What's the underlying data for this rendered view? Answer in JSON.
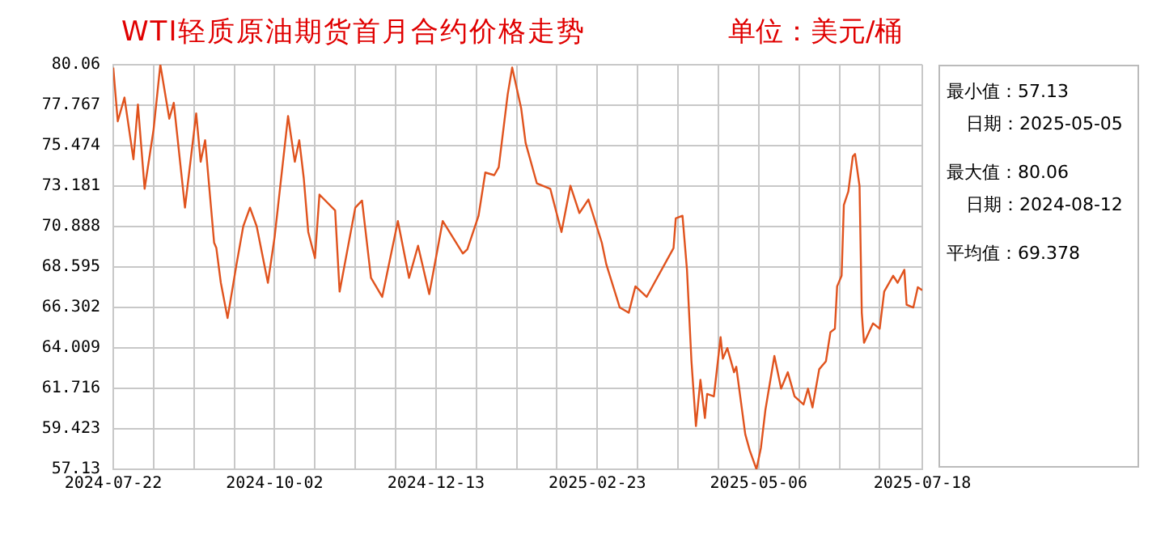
{
  "chart_data": {
    "type": "line",
    "title": "WTI轻质原油期货首月合约价格走势",
    "ylabel": "单位：美元/桶",
    "annotations": [
      "最小值：57.13",
      "日期：2025-05-05",
      "最大值：80.06",
      "日期：2024-08-12",
      "平均值：69.378"
    ],
    "x": [
      "2024-07-22",
      "2024-07-24",
      "2024-07-27",
      "2024-07-31",
      "2024-08-02",
      "2024-08-05",
      "2024-08-09",
      "2024-08-12",
      "2024-08-16",
      "2024-08-18",
      "2024-08-23",
      "2024-08-28",
      "2024-08-30",
      "2024-09-01",
      "2024-09-05",
      "2024-09-06",
      "2024-09-08",
      "2024-09-11",
      "2024-09-15",
      "2024-09-18",
      "2024-09-21",
      "2024-09-24",
      "2024-09-29",
      "2024-10-02",
      "2024-10-08",
      "2024-10-11",
      "2024-10-13",
      "2024-10-15",
      "2024-10-17",
      "2024-10-20",
      "2024-10-22",
      "2024-10-29",
      "2024-10-31",
      "2024-11-07",
      "2024-11-10",
      "2024-11-14",
      "2024-11-19",
      "2024-11-26",
      "2024-12-01",
      "2024-12-05",
      "2024-12-10",
      "2024-12-16",
      "2024-12-25",
      "2024-12-27",
      "2025-01-01",
      "2025-01-04",
      "2025-01-08",
      "2025-01-10",
      "2025-01-14",
      "2025-01-16",
      "2025-01-20",
      "2025-01-22",
      "2025-01-27",
      "2025-02-02",
      "2025-02-07",
      "2025-02-11",
      "2025-02-15",
      "2025-02-19",
      "2025-02-25",
      "2025-02-27",
      "2025-03-05",
      "2025-03-09",
      "2025-03-12",
      "2025-03-17",
      "2025-03-29",
      "2025-03-30",
      "2025-04-02",
      "2025-04-04",
      "2025-04-06",
      "2025-04-08",
      "2025-04-10",
      "2025-04-12",
      "2025-04-13",
      "2025-04-16",
      "2025-04-19",
      "2025-04-20",
      "2025-04-22",
      "2025-04-25",
      "2025-04-26",
      "2025-04-30",
      "2025-05-02",
      "2025-05-05",
      "2025-05-07",
      "2025-05-09",
      "2025-05-13",
      "2025-05-16",
      "2025-05-19",
      "2025-05-22",
      "2025-05-26",
      "2025-05-28",
      "2025-05-30",
      "2025-06-02",
      "2025-06-05",
      "2025-06-07",
      "2025-06-09",
      "2025-06-10",
      "2025-06-12",
      "2025-06-13",
      "2025-06-15",
      "2025-06-17",
      "2025-06-18",
      "2025-06-20",
      "2025-06-21",
      "2025-06-22",
      "2025-06-26",
      "2025-06-29",
      "2025-07-01",
      "2025-07-05",
      "2025-07-07",
      "2025-07-10",
      "2025-07-11",
      "2025-07-14",
      "2025-07-16",
      "2025-07-18"
    ],
    "series": [
      {
        "color": "#e0531e",
        "values": [
          79.9,
          76.85,
          78.2,
          74.7,
          77.8,
          73.03,
          76.4,
          80.06,
          77.0,
          77.9,
          71.96,
          77.3,
          74.56,
          75.78,
          69.97,
          69.67,
          67.7,
          65.7,
          68.75,
          70.9,
          71.96,
          70.9,
          67.7,
          70.3,
          77.15,
          74.56,
          75.78,
          73.64,
          70.58,
          69.1,
          72.7,
          71.8,
          67.2,
          71.96,
          72.36,
          67.98,
          66.9,
          71.2,
          67.98,
          69.8,
          67.06,
          71.2,
          69.36,
          69.6,
          71.5,
          73.95,
          73.8,
          74.25,
          78.38,
          79.9,
          77.6,
          75.63,
          73.34,
          73.03,
          70.58,
          73.2,
          71.65,
          72.42,
          69.97,
          68.75,
          66.3,
          66.0,
          67.5,
          66.9,
          69.67,
          71.35,
          71.5,
          68.44,
          63.25,
          59.58,
          62.2,
          60.04,
          61.4,
          61.26,
          64.62,
          63.4,
          64.0,
          62.63,
          62.94,
          59.12,
          58.2,
          57.13,
          58.35,
          60.5,
          63.55,
          61.7,
          62.63,
          61.26,
          60.8,
          61.7,
          60.64,
          62.8,
          63.25,
          64.9,
          65.1,
          67.5,
          68.1,
          72.11,
          72.88,
          74.86,
          75.0,
          73.18,
          66.0,
          64.3,
          65.4,
          65.1,
          67.2,
          68.1,
          67.7,
          68.44,
          66.46,
          66.3,
          67.45,
          67.28
        ]
      }
    ],
    "xlim": [
      "2024-07-22",
      "2025-07-18"
    ],
    "xticks": [
      "2024-07-22",
      {
        "value": "2024-08-09",
        "label": null
      },
      {
        "value": "2024-08-27",
        "label": null
      },
      {
        "value": "2024-09-14",
        "label": null
      },
      "2024-10-02",
      {
        "value": "2024-10-20",
        "label": null
      },
      {
        "value": "2024-11-07",
        "label": null
      },
      {
        "value": "2024-11-25",
        "label": null
      },
      "2024-12-13",
      {
        "value": "2024-12-31",
        "label": null
      },
      {
        "value": "2025-01-18",
        "label": null
      },
      {
        "value": "2025-02-05",
        "label": null
      },
      "2025-02-23",
      {
        "value": "2025-03-13",
        "label": null
      },
      {
        "value": "2025-03-31",
        "label": null
      },
      {
        "value": "2025-04-18",
        "label": null
      },
      "2025-05-06",
      {
        "value": "2025-05-24",
        "label": null
      },
      {
        "value": "2025-06-11",
        "label": null
      },
      {
        "value": "2025-06-29",
        "label": null
      },
      "2025-07-18"
    ],
    "ylim": [
      57.13,
      80.06
    ],
    "yticks": [
      57.13,
      59.423,
      61.716,
      64.009,
      66.302,
      68.595,
      70.888,
      73.181,
      75.474,
      77.767,
      80.06
    ],
    "grid": true,
    "legend": false,
    "marker": "none",
    "line_style": "solid"
  }
}
